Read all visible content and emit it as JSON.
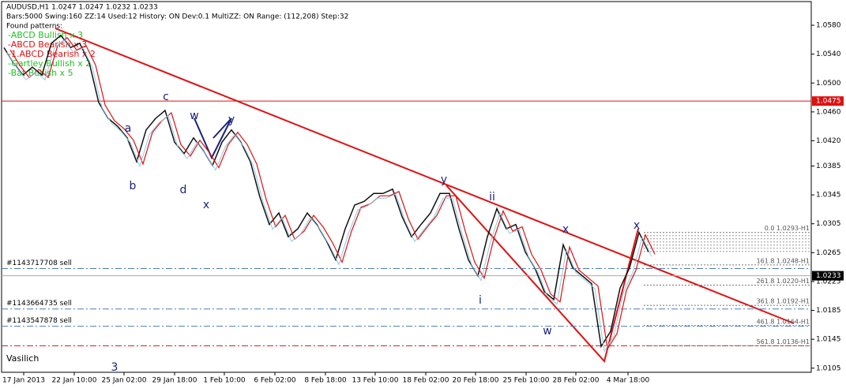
{
  "header": {
    "symbol": "AUDUSD,H1  1.0247 1.0247 1.0232 1.0233",
    "info": "Bars:5000  Swing:160  ZZ:14  Used:12  History: ON  Dev:0.1  MultiZZ: ON  Range: (112,208)  Step:32",
    "found": "Found patterns:",
    "patterns": [
      {
        "text": "-ABCD Bullish x 3",
        "color": "#22c022"
      },
      {
        "text": "-ABCD Bearish x 3",
        "color": "#e01010"
      },
      {
        "text": "-1.ABCD Bearish x 2",
        "color": "#e01010"
      },
      {
        "text": "-Gartley Bullish x 2",
        "color": "#22c022"
      },
      {
        "text": "-Bat Bullish x 5",
        "color": "#22c022"
      }
    ]
  },
  "ylim": [
    1.0096,
    1.0615
  ],
  "price_axis": [
    {
      "value": 1.058,
      "label": "1.0580"
    },
    {
      "value": 1.054,
      "label": "1.0540"
    },
    {
      "value": 1.05,
      "label": "1.0500"
    },
    {
      "value": 1.046,
      "label": "1.0460"
    },
    {
      "value": 1.042,
      "label": "1.0420"
    },
    {
      "value": 1.0385,
      "label": "1.0385"
    },
    {
      "value": 1.0345,
      "label": "1.0345"
    },
    {
      "value": 1.0305,
      "label": "1.0305"
    },
    {
      "value": 1.0265,
      "label": "1.0265"
    },
    {
      "value": 1.0225,
      "label": "1.0225"
    },
    {
      "value": 1.0185,
      "label": "1.0185"
    },
    {
      "value": 1.0145,
      "label": "1.0145"
    },
    {
      "value": 1.0105,
      "label": "1.0105"
    }
  ],
  "level": {
    "value": 1.0475,
    "label": "1.0475"
  },
  "current": {
    "value": 1.0233,
    "label": "1.0233"
  },
  "orders": [
    {
      "value": 1.0243,
      "label": "#1143717708 sell"
    },
    {
      "value": 1.0187,
      "label": "#1143664735 sell"
    },
    {
      "value": 1.0163,
      "label": "#1143547878 sell"
    }
  ],
  "fib": [
    {
      "value": 1.0293,
      "label": "0.0 1.0293-H1"
    },
    {
      "value": 1.0248,
      "label": "161.8 1.0248-H1"
    },
    {
      "value": 1.022,
      "label": "261.8 1.0220-H1"
    },
    {
      "value": 1.0192,
      "label": "361.8 1.0192-H1"
    },
    {
      "value": 1.0164,
      "label": "461.8 1.0164-H1"
    },
    {
      "value": 1.0136,
      "label": "561.8 1.0136-H1"
    }
  ],
  "dates": [
    "17 Jan 2013",
    "22 Jan 10:00",
    "25 Jan 02:00",
    "29 Jan 18:00",
    "1 Feb 10:00",
    "6 Feb 02:00",
    "8 Feb 18:00",
    "13 Feb 10:00",
    "18 Feb 02:00",
    "20 Feb 18:00",
    "25 Feb 10:00",
    "28 Feb 02:00",
    "4 Mar 18:00"
  ],
  "price_path": [
    1.0549,
    1.0528,
    1.0511,
    1.0522,
    1.0511,
    1.0555,
    1.0566,
    1.0549,
    1.0555,
    1.0528,
    1.0473,
    1.0451,
    1.044,
    1.0424,
    1.0391,
    1.0435,
    1.0451,
    1.0462,
    1.0418,
    1.0402,
    1.0424,
    1.0407,
    1.0386,
    1.0418,
    1.0435,
    1.0418,
    1.0391,
    1.0342,
    1.0304,
    1.032,
    1.0287,
    1.0298,
    1.032,
    1.0304,
    1.0282,
    1.0255,
    1.0298,
    1.0331,
    1.0336,
    1.0347,
    1.0347,
    1.0353,
    1.0315,
    1.0287,
    1.0304,
    1.032,
    1.0347,
    1.0347,
    1.0298,
    1.0255,
    1.0233,
    1.0287,
    1.0326,
    1.0298,
    1.0304,
    1.0266,
    1.0244,
    1.0211,
    1.02,
    1.0276,
    1.0244,
    1.0233,
    1.0222,
    1.0135,
    1.0156,
    1.0216,
    1.0244,
    1.0293,
    1.0266
  ],
  "waves": [
    "a",
    "b",
    "c",
    "d",
    "w",
    "x",
    "y",
    "y",
    "ii",
    "i",
    "x",
    "w",
    "x",
    "3"
  ],
  "author": "Vasilich"
}
